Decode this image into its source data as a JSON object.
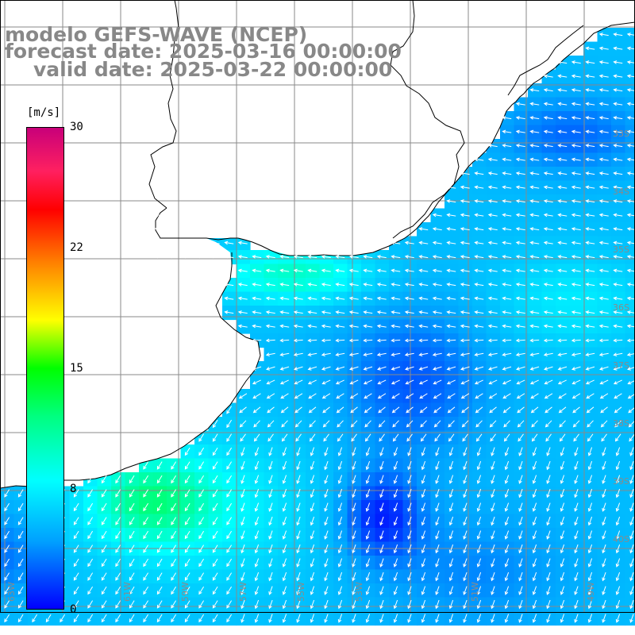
{
  "title": {
    "line1": "modelo GEFS-WAVE (NCEP)",
    "line2": "forecast date: 2025-03-16 00:00:00",
    "line3": "valid date: 2025-03-22 00:00:00"
  },
  "colorbar": {
    "unit": "[m/s]",
    "ticks": [
      "30",
      "22",
      "15",
      "8",
      "0"
    ],
    "tick_values": [
      30,
      22,
      15,
      8,
      0
    ],
    "min": 0,
    "max": 30,
    "colors": [
      "#0000ff",
      "#00a0ff",
      "#00ffff",
      "#00ff80",
      "#00ff00",
      "#ffff00",
      "#ff8000",
      "#ff0000",
      "#c8007a"
    ]
  },
  "map": {
    "region": "South Atlantic, southern Brazil / Uruguay / Argentina coast",
    "lat_range": [
      -40.5,
      -29.5
    ],
    "lon_range": [
      -64,
      -47
    ],
    "lat_labels": [
      "33S",
      "34S",
      "35S",
      "36S",
      "37S",
      "38S",
      "39S",
      "40S"
    ],
    "lon_labels": [
      "63W",
      "61W",
      "59W",
      "57W",
      "55W",
      "53W",
      "51W",
      "49W"
    ],
    "land_color": "#ffffff",
    "grid_color": "#808080",
    "coast_color": "#000000"
  }
}
